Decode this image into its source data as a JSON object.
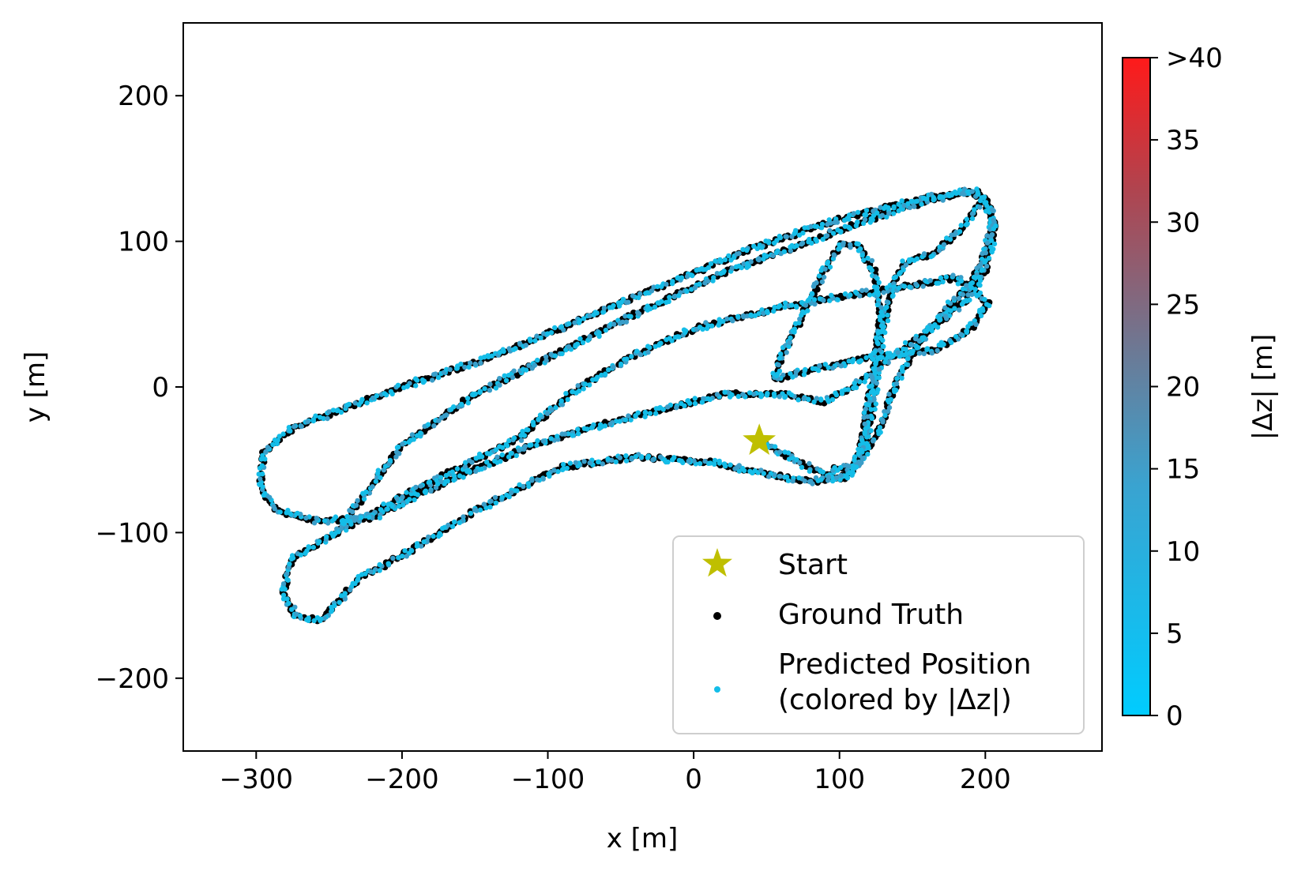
{
  "chart_data": {
    "type": "scatter",
    "xlabel": "x [m]",
    "ylabel": "y [m]",
    "xlim": [
      -350,
      280
    ],
    "ylim": [
      -250,
      250
    ],
    "xticks": [
      -300,
      -200,
      -100,
      0,
      100,
      200
    ],
    "xtick_labels": [
      "−300",
      "−200",
      "−100",
      "0",
      "100",
      "200"
    ],
    "yticks": [
      -200,
      -100,
      0,
      100,
      200
    ],
    "ytick_labels": [
      "−200",
      "−100",
      "0",
      "100",
      "200"
    ],
    "grid": false,
    "legend_position": "lower-right",
    "colors": {
      "start": "#bfbf00",
      "ground_truth": "#000000",
      "predicted": "#14bde8"
    },
    "start": {
      "x": 45,
      "y": -37,
      "label": "Start"
    },
    "series": [
      {
        "name": "Ground Truth",
        "style": "black-dots",
        "waypoints": [
          [
            45,
            -37
          ],
          [
            60,
            -45
          ],
          [
            85,
            -58
          ],
          [
            100,
            -62
          ],
          [
            115,
            -50
          ],
          [
            122,
            -20
          ],
          [
            126,
            10
          ],
          [
            130,
            40
          ],
          [
            136,
            70
          ],
          [
            145,
            85
          ],
          [
            165,
            92
          ],
          [
            185,
            110
          ],
          [
            198,
            128
          ],
          [
            205,
            115
          ],
          [
            200,
            92
          ],
          [
            190,
            72
          ],
          [
            175,
            55
          ],
          [
            155,
            30
          ],
          [
            140,
            5
          ],
          [
            125,
            -35
          ],
          [
            105,
            -62
          ],
          [
            80,
            -65
          ],
          [
            50,
            -60
          ],
          [
            15,
            -52
          ],
          [
            -40,
            -48
          ],
          [
            -90,
            -55
          ],
          [
            -150,
            -85
          ],
          [
            -190,
            -110
          ],
          [
            -230,
            -132
          ],
          [
            -255,
            -160
          ],
          [
            -272,
            -158
          ],
          [
            -282,
            -142
          ],
          [
            -275,
            -118
          ],
          [
            -245,
            -100
          ],
          [
            -200,
            -75
          ],
          [
            -160,
            -55
          ],
          [
            -120,
            -35
          ],
          [
            -85,
            -5
          ],
          [
            -45,
            20
          ],
          [
            0,
            40
          ],
          [
            60,
            55
          ],
          [
            120,
            65
          ],
          [
            180,
            75
          ],
          [
            202,
            58
          ],
          [
            190,
            40
          ],
          [
            165,
            25
          ],
          [
            120,
            20
          ],
          [
            80,
            12
          ],
          [
            55,
            5
          ],
          [
            60,
            20
          ],
          [
            75,
            50
          ],
          [
            90,
            80
          ],
          [
            100,
            98
          ],
          [
            112,
            97
          ],
          [
            124,
            80
          ],
          [
            128,
            50
          ],
          [
            125,
            20
          ],
          [
            120,
            -10
          ],
          [
            115,
            -40
          ],
          [
            110,
            -55
          ],
          [
            95,
            -56
          ]
        ]
      },
      {
        "name": "Predicted Position\n(colored by |Δz|)",
        "style": "colored-dots",
        "waypoints": [
          [
            45,
            -37
          ],
          [
            60,
            -45
          ],
          [
            85,
            -58
          ],
          [
            100,
            -62
          ],
          [
            115,
            -50
          ],
          [
            122,
            -20
          ],
          [
            126,
            10
          ],
          [
            130,
            40
          ],
          [
            136,
            70
          ],
          [
            145,
            85
          ],
          [
            165,
            92
          ],
          [
            185,
            110
          ],
          [
            198,
            128
          ],
          [
            205,
            115
          ],
          [
            200,
            92
          ],
          [
            190,
            72
          ],
          [
            175,
            55
          ],
          [
            155,
            30
          ],
          [
            140,
            5
          ],
          [
            125,
            -35
          ],
          [
            105,
            -62
          ],
          [
            80,
            -65
          ],
          [
            50,
            -60
          ],
          [
            15,
            -52
          ],
          [
            -40,
            -48
          ],
          [
            -90,
            -55
          ],
          [
            -150,
            -85
          ],
          [
            -190,
            -110
          ],
          [
            -230,
            -132
          ],
          [
            -255,
            -160
          ],
          [
            -272,
            -158
          ],
          [
            -282,
            -142
          ],
          [
            -275,
            -118
          ],
          [
            -245,
            -100
          ],
          [
            -200,
            -75
          ],
          [
            -160,
            -55
          ],
          [
            -120,
            -35
          ],
          [
            -85,
            -5
          ],
          [
            -45,
            20
          ],
          [
            0,
            40
          ],
          [
            60,
            55
          ],
          [
            120,
            65
          ],
          [
            180,
            75
          ],
          [
            202,
            58
          ],
          [
            190,
            40
          ],
          [
            165,
            25
          ],
          [
            120,
            20
          ],
          [
            80,
            12
          ],
          [
            55,
            5
          ],
          [
            60,
            20
          ],
          [
            75,
            50
          ],
          [
            90,
            80
          ],
          [
            100,
            98
          ],
          [
            112,
            97
          ],
          [
            124,
            80
          ],
          [
            128,
            50
          ],
          [
            125,
            20
          ],
          [
            120,
            -10
          ],
          [
            115,
            -40
          ],
          [
            110,
            -55
          ],
          [
            95,
            -56
          ]
        ]
      }
    ],
    "secondary_loop": [
      [
        -245,
        -100
      ],
      [
        -230,
        -80
      ],
      [
        -200,
        -40
      ],
      [
        -150,
        -5
      ],
      [
        -100,
        20
      ],
      [
        -40,
        50
      ],
      [
        20,
        78
      ],
      [
        80,
        100
      ],
      [
        140,
        122
      ],
      [
        185,
        134
      ],
      [
        200,
        130
      ],
      [
        207,
        110
      ],
      [
        200,
        80
      ],
      [
        186,
        58
      ],
      [
        160,
        38
      ],
      [
        135,
        20
      ],
      [
        110,
        0
      ],
      [
        90,
        -10
      ],
      [
        60,
        -5
      ],
      [
        20,
        -5
      ],
      [
        -20,
        -15
      ],
      [
        -60,
        -25
      ],
      [
        -110,
        -40
      ],
      [
        -170,
        -65
      ],
      [
        -220,
        -90
      ],
      [
        -260,
        -92
      ],
      [
        -285,
        -85
      ],
      [
        -297,
        -70
      ],
      [
        -295,
        -45
      ],
      [
        -275,
        -28
      ],
      [
        -240,
        -15
      ],
      [
        -200,
        0
      ],
      [
        -140,
        20
      ],
      [
        -80,
        45
      ],
      [
        -20,
        70
      ],
      [
        40,
        95
      ],
      [
        100,
        115
      ],
      [
        160,
        130
      ],
      [
        195,
        135
      ]
    ],
    "colorbar": {
      "label": "|Δz| [m]",
      "min": 0,
      "max": 40,
      "ticks": [
        0,
        5,
        10,
        15,
        20,
        25,
        30,
        35,
        40
      ],
      "tick_labels": [
        "0",
        "5",
        "10",
        "15",
        "20",
        "25",
        "30",
        "35",
        ">40"
      ],
      "color_low": "#00ccff",
      "color_mid": "#6b7a96",
      "color_high": "#ff1a1a"
    },
    "legend": [
      {
        "label": "Start",
        "marker": "star"
      },
      {
        "label": "Ground Truth",
        "marker": "black-dot"
      },
      {
        "label": "Predicted Position",
        "label2": "(colored by |Δz|)",
        "marker": "blue-dot"
      }
    ]
  }
}
